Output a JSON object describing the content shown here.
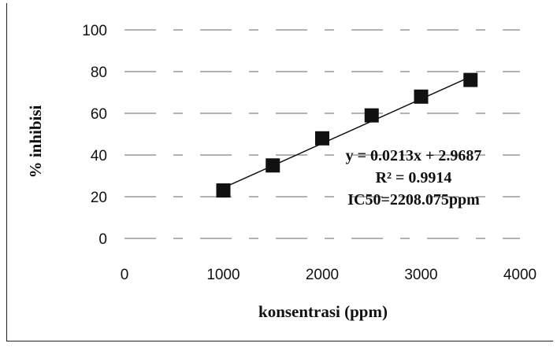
{
  "chart_data": {
    "type": "scatter",
    "title": "",
    "xlabel": "konsentrasi (ppm)",
    "ylabel": "% inhibisi",
    "xlim": [
      0,
      4000
    ],
    "ylim": [
      0,
      100
    ],
    "xticks": [
      "0",
      "1000",
      "2000",
      "3000",
      "4000"
    ],
    "yticks": [
      "0",
      "20",
      "40",
      "60",
      "80",
      "100"
    ],
    "grid": "horizontal",
    "legend": "none",
    "series": [
      {
        "x": [
          1000,
          1500,
          2000,
          2500,
          3000,
          3500
        ],
        "y": [
          23,
          35,
          48,
          59,
          68,
          76
        ],
        "marker": "square",
        "color": "#111111"
      }
    ],
    "trendline": {
      "slope": 0.0213,
      "intercept": 2.9687,
      "from": 1000,
      "to": 3500,
      "color": "#111111"
    },
    "annotations": [
      "y = 0.0213x + 2.9687",
      "R² = 0.9914",
      "IC50=2208.075ppm"
    ]
  }
}
